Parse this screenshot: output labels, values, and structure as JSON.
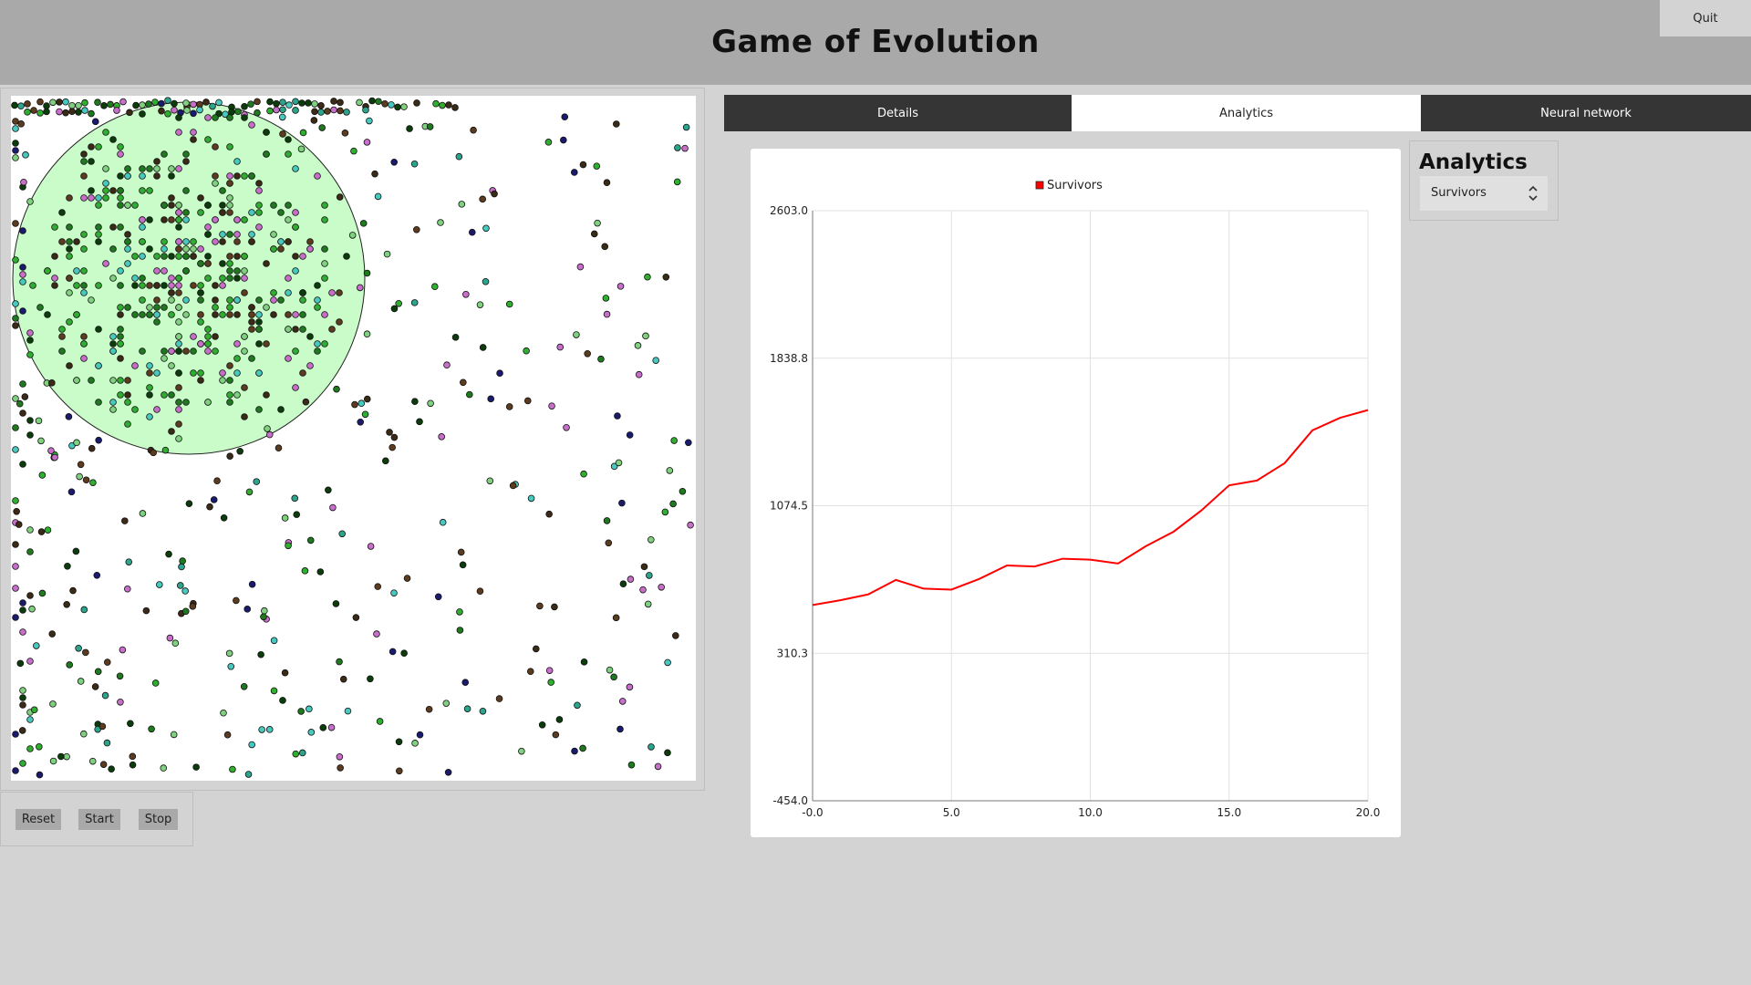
{
  "app": {
    "title": "Game of Evolution",
    "quit_label": "Quit"
  },
  "simulation": {
    "world_background": "#ffffff",
    "zone_color": "#c9fcc9",
    "creature_colors": [
      "#1f7a1f",
      "#2fae2f",
      "#5c3b1e",
      "#3a2a16",
      "#48c9c0",
      "#c86fc9",
      "#1a1a6e",
      "#7fd17f",
      "#2ca58d",
      "#0b3d0b"
    ]
  },
  "controls": {
    "reset_label": "Reset",
    "start_label": "Start",
    "stop_label": "Stop"
  },
  "tabs": [
    {
      "label": "Details",
      "active": false
    },
    {
      "label": "Analytics",
      "active": true
    },
    {
      "label": "Neural network",
      "active": false
    }
  ],
  "analytics": {
    "heading": "Analytics",
    "selected_metric": "Survivors"
  },
  "chart_data": {
    "type": "line",
    "title": "",
    "xlabel": "",
    "ylabel": "",
    "legend_position": "top",
    "grid": true,
    "xlim": [
      0,
      20
    ],
    "ylim": [
      -454.0,
      2603.0
    ],
    "x_ticks": [
      "-0.0",
      "5.0",
      "10.0",
      "15.0",
      "20.0"
    ],
    "y_ticks": [
      "2603.0",
      "1838.8",
      "1074.5",
      "310.3",
      "-454.0"
    ],
    "series": [
      {
        "name": "Survivors",
        "color": "#ff0000",
        "x": [
          0,
          1,
          2,
          3,
          4,
          5,
          6,
          7,
          8,
          9,
          10,
          11,
          12,
          13,
          14,
          15,
          16,
          17,
          18,
          19,
          20
        ],
        "y": [
          560,
          585,
          615,
          690,
          645,
          640,
          695,
          765,
          760,
          800,
          795,
          775,
          865,
          940,
          1050,
          1180,
          1205,
          1295,
          1465,
          1530,
          1570
        ]
      }
    ]
  }
}
